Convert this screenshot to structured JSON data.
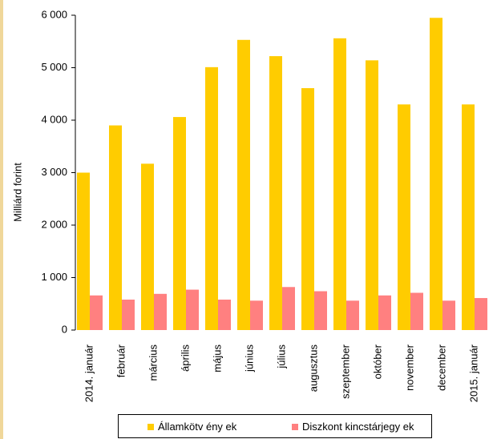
{
  "chart_data": {
    "type": "bar",
    "categories": [
      "2014. január",
      "február",
      "március",
      "április",
      "május",
      "június",
      "július",
      "augusztus",
      "szeptember",
      "október",
      "november",
      "december",
      "2015. január"
    ],
    "series": [
      {
        "name": "Államkötvények",
        "color": "#ffcc00",
        "values": [
          3000,
          3900,
          3170,
          4060,
          5010,
          5530,
          5220,
          4610,
          5560,
          5140,
          4300,
          5950,
          4300
        ]
      },
      {
        "name": "Diszkont kincstárjegyek",
        "color": "#ff8080",
        "values": [
          660,
          580,
          690,
          770,
          580,
          560,
          820,
          740,
          560,
          660,
          710,
          560,
          610
        ]
      }
    ],
    "ylabel": "Milliárd forint",
    "xlabel": "",
    "ylim": [
      0,
      6000
    ],
    "yticks": [
      0,
      1000,
      2000,
      3000,
      4000,
      5000,
      6000
    ],
    "ytick_labels": [
      "0",
      "1 000",
      "2 000",
      "3 000",
      "4 000",
      "5 000",
      "6 000"
    ],
    "legend_position": "bottom",
    "grid": false
  },
  "legend": {
    "item1": "Államkötv ény ek",
    "item2": "Diszkont kincstárjegy ek"
  }
}
